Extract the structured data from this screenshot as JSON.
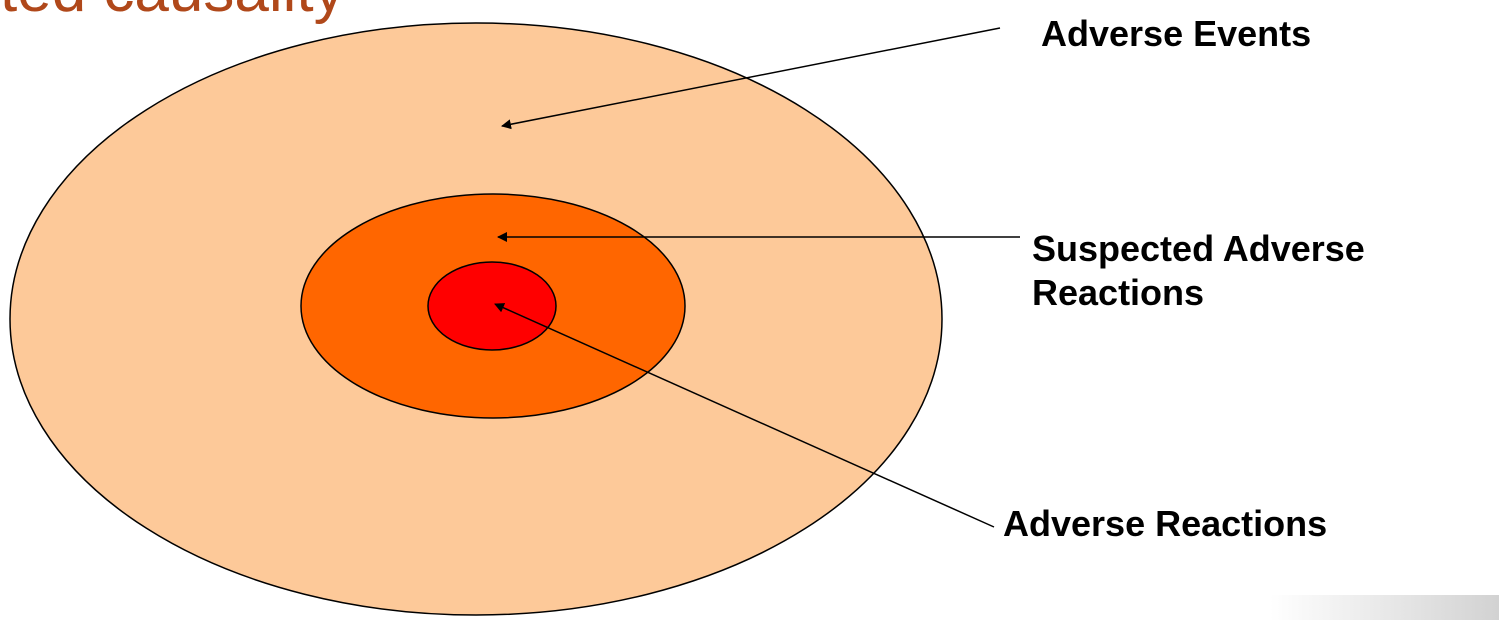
{
  "title_fragment": "ted causality",
  "labels": {
    "adverse_events": "Adverse Events",
    "suspected_line1": "Suspected Adverse",
    "suspected_line2": "Reactions",
    "adverse_reactions": "Adverse Reactions"
  },
  "colors": {
    "outer_ellipse": "#fdc999",
    "middle_ellipse": "#ff6600",
    "inner_ellipse": "#ff0000",
    "title": "#b0481a",
    "stroke": "#000000"
  }
}
